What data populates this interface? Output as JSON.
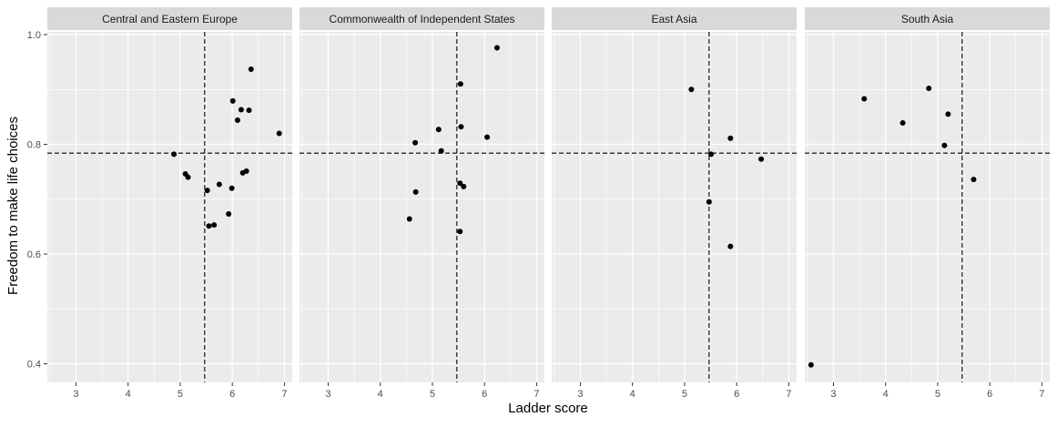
{
  "chart_data": {
    "type": "scatter",
    "xlabel": "Ladder score",
    "ylabel": "Freedom to make life choices",
    "xlim": [
      2.45,
      7.15
    ],
    "ylim": [
      0.366,
      1.005
    ],
    "x_ticks": [
      3,
      4,
      5,
      6,
      7
    ],
    "y_ticks": [
      0.4,
      0.6,
      0.8,
      1.0
    ],
    "y_tick_labels": [
      "0.4",
      "0.6",
      "0.8",
      "1.0"
    ],
    "x_tick_labels": [
      "3",
      "4",
      "5",
      "6",
      "7"
    ],
    "reference_lines": {
      "x": 5.47,
      "y": 0.784,
      "style": "dashed"
    },
    "grid": true,
    "colors": {
      "panel_bg": "#ebebeb",
      "strip_bg": "#d9d9d9",
      "grid": "#ffffff",
      "point": "#000000"
    },
    "panels": [
      {
        "name": "Central and Eastern Europe",
        "points": [
          {
            "x": 4.88,
            "y": 0.782
          },
          {
            "x": 5.1,
            "y": 0.746
          },
          {
            "x": 5.15,
            "y": 0.74
          },
          {
            "x": 5.52,
            "y": 0.716
          },
          {
            "x": 5.55,
            "y": 0.651
          },
          {
            "x": 5.65,
            "y": 0.653
          },
          {
            "x": 5.75,
            "y": 0.727
          },
          {
            "x": 5.93,
            "y": 0.673
          },
          {
            "x": 5.99,
            "y": 0.72
          },
          {
            "x": 6.01,
            "y": 0.879
          },
          {
            "x": 6.1,
            "y": 0.844
          },
          {
            "x": 6.17,
            "y": 0.863
          },
          {
            "x": 6.2,
            "y": 0.748
          },
          {
            "x": 6.27,
            "y": 0.751
          },
          {
            "x": 6.32,
            "y": 0.862
          },
          {
            "x": 6.36,
            "y": 0.937
          },
          {
            "x": 6.9,
            "y": 0.82
          }
        ]
      },
      {
        "name": "Commonwealth of Independent States",
        "points": [
          {
            "x": 4.56,
            "y": 0.664
          },
          {
            "x": 4.67,
            "y": 0.803
          },
          {
            "x": 4.68,
            "y": 0.713
          },
          {
            "x": 5.12,
            "y": 0.827
          },
          {
            "x": 5.17,
            "y": 0.788
          },
          {
            "x": 5.53,
            "y": 0.641
          },
          {
            "x": 5.53,
            "y": 0.729
          },
          {
            "x": 5.54,
            "y": 0.91
          },
          {
            "x": 5.55,
            "y": 0.832
          },
          {
            "x": 5.6,
            "y": 0.723
          },
          {
            "x": 6.05,
            "y": 0.813
          },
          {
            "x": 6.24,
            "y": 0.976
          }
        ]
      },
      {
        "name": "East Asia",
        "points": [
          {
            "x": 5.13,
            "y": 0.9
          },
          {
            "x": 5.47,
            "y": 0.695
          },
          {
            "x": 5.51,
            "y": 0.782
          },
          {
            "x": 5.88,
            "y": 0.811
          },
          {
            "x": 5.88,
            "y": 0.614
          },
          {
            "x": 6.47,
            "y": 0.773
          }
        ]
      },
      {
        "name": "South Asia",
        "points": [
          {
            "x": 2.57,
            "y": 0.398
          },
          {
            "x": 3.59,
            "y": 0.883
          },
          {
            "x": 4.33,
            "y": 0.839
          },
          {
            "x": 4.83,
            "y": 0.902
          },
          {
            "x": 5.13,
            "y": 0.798
          },
          {
            "x": 5.2,
            "y": 0.855
          },
          {
            "x": 5.69,
            "y": 0.736
          }
        ]
      }
    ]
  }
}
